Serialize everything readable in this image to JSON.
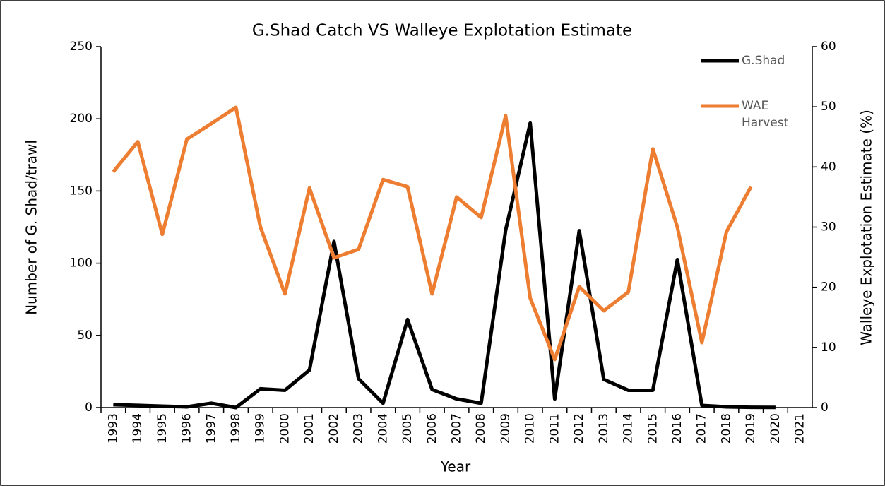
{
  "chart_data": {
    "type": "line",
    "title": "G.Shad Catch VS Walleye Explotation Estimate",
    "x_label": "Year",
    "y_label": "Number of G. Shad/trawl",
    "y2_label": "Walleye Explotation Estimate (%)",
    "categories": [
      "1993",
      "1994",
      "1995",
      "1996",
      "1997",
      "1998",
      "1999",
      "2000",
      "2001",
      "2002",
      "2003",
      "2004",
      "2005",
      "2006",
      "2007",
      "2008",
      "2009",
      "2010",
      "2011",
      "2012",
      "2013",
      "2014",
      "2015",
      "2016",
      "2017",
      "2018",
      "2019",
      "2020",
      "2021"
    ],
    "series": [
      {
        "name": "G.Shad",
        "color": "#000000",
        "axis": "y",
        "values": [
          2,
          1.5,
          1,
          0.5,
          3,
          0,
          13,
          12,
          26,
          115,
          20,
          3,
          61,
          12.5,
          6,
          3,
          123,
          197,
          6,
          122.5,
          19.5,
          12,
          12,
          102.5,
          1.5,
          0.5,
          0.2,
          0.1,
          null
        ]
      },
      {
        "name": "WAE Harvest",
        "color": "#ed7d31",
        "axis": "y2",
        "values": [
          39.2,
          44.2,
          28.8,
          44.6,
          47.2,
          49.9,
          30,
          18.9,
          36.5,
          24.9,
          26.3,
          37.9,
          36.7,
          18.9,
          35,
          31.6,
          48.5,
          18.2,
          8,
          20.1,
          16.1,
          19.2,
          43,
          30,
          10.8,
          29.2,
          36.7,
          null,
          null
        ]
      }
    ],
    "ylim": [
      0,
      250
    ],
    "yticks": [
      0,
      50,
      100,
      150,
      200,
      250
    ],
    "y2lim": [
      0,
      60
    ],
    "y2ticks": [
      0,
      10,
      20,
      30,
      40,
      50,
      60
    ],
    "legend": "top-right"
  }
}
